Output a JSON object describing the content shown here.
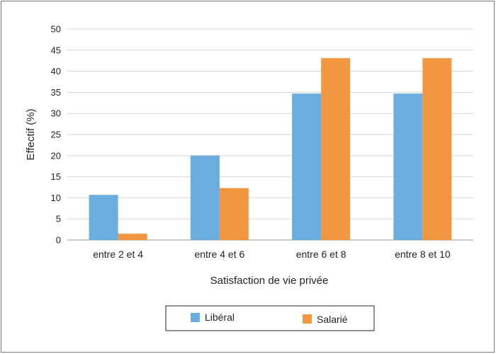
{
  "chart_data": {
    "type": "bar",
    "title": "",
    "xlabel": "Satisfaction de vie privée",
    "ylabel": "Effectif (%)",
    "ylim": [
      0,
      50
    ],
    "yticks": [
      0,
      5,
      10,
      15,
      20,
      25,
      30,
      35,
      40,
      45,
      50
    ],
    "grid": true,
    "legend_position": "bottom",
    "categories": [
      "entre 2 et 4",
      "entre 4 et 6",
      "entre 6 et 8",
      "entre 8 et 10"
    ],
    "series": [
      {
        "name": "Libéral",
        "color": "#6aaee0",
        "values": [
          10.7,
          20.0,
          34.7,
          34.7
        ]
      },
      {
        "name": "Salarié",
        "color": "#f39640",
        "values": [
          1.5,
          12.3,
          43.1,
          43.1
        ]
      }
    ]
  }
}
